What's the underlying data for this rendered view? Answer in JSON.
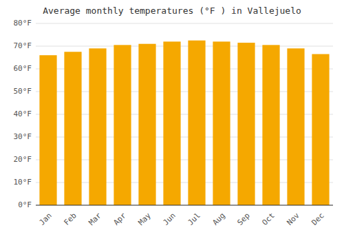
{
  "chart_data": {
    "type": "bar",
    "title": "Average monthly temperatures (°F ) in Vallejuelo",
    "categories": [
      "Jan",
      "Feb",
      "Mar",
      "Apr",
      "May",
      "Jun",
      "Jul",
      "Aug",
      "Sep",
      "Oct",
      "Nov",
      "Dec"
    ],
    "values": [
      66,
      67.5,
      69,
      70.5,
      71,
      72,
      72.5,
      72,
      71.5,
      70.5,
      69,
      66.5
    ],
    "color": "#F5A800",
    "ylim": [
      0,
      80
    ],
    "yticks": [
      {
        "value": 0,
        "label": "0°F"
      },
      {
        "value": 10,
        "label": "10°F"
      },
      {
        "value": 20,
        "label": "20°F"
      },
      {
        "value": 30,
        "label": "30°F"
      },
      {
        "value": 40,
        "label": "40°F"
      },
      {
        "value": 50,
        "label": "50°F"
      },
      {
        "value": 60,
        "label": "60°F"
      },
      {
        "value": 70,
        "label": "70°F"
      },
      {
        "value": 80,
        "label": "80°F"
      }
    ],
    "grid": true
  }
}
